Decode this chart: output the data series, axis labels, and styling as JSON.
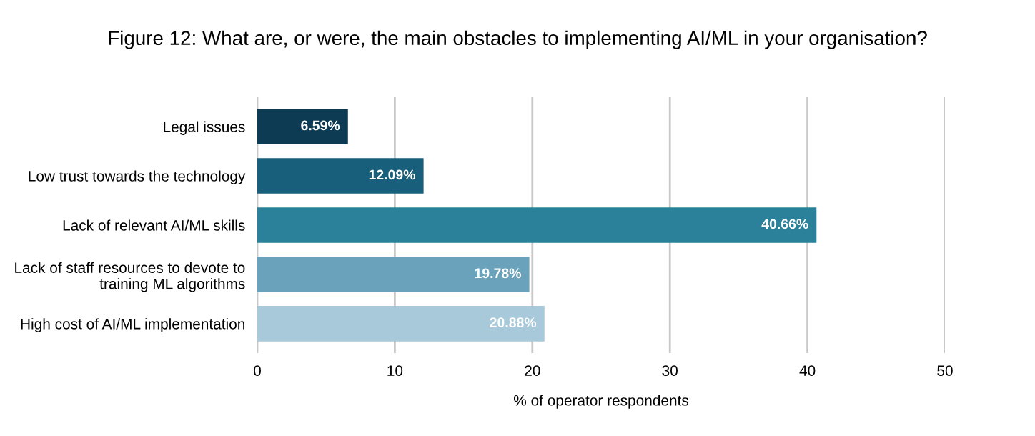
{
  "chart_data": {
    "type": "bar",
    "orientation": "horizontal",
    "title": "Figure 12: What are, or were, the main obstacles to implementing AI/ML in your organisation?",
    "xlabel": "% of operator respondents",
    "categories": [
      "Legal issues",
      "Low trust towards the technology",
      "Lack of relevant AI/ML skills",
      "Lack of staff resources to devote to\ntraining ML algorithms",
      "High cost of AI/ML implementation"
    ],
    "values": [
      6.59,
      12.09,
      40.66,
      19.78,
      20.88
    ],
    "colors": [
      "#0c3b53",
      "#175f7b",
      "#2b8199",
      "#6aa2bb",
      "#a8c9da"
    ],
    "value_labels": [
      "6.59%",
      "12.09%",
      "40.66%",
      "19.78%",
      "20.88%"
    ],
    "xlim": [
      0,
      50
    ],
    "xticks": [
      0,
      10,
      20,
      30,
      40,
      50
    ],
    "grid": "x",
    "legend": false
  }
}
